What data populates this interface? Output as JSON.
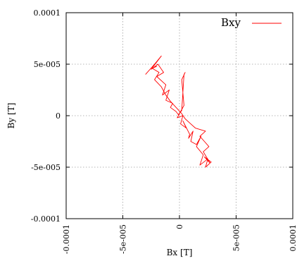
{
  "chart_data": {
    "type": "line",
    "title": "",
    "xlabel": "Bx [T]",
    "ylabel": "By [T]",
    "xlim": [
      -0.0001,
      0.0001
    ],
    "ylim": [
      -0.0001,
      0.0001
    ],
    "xticks": [
      -0.0001,
      -5e-05,
      0,
      5e-05,
      0.0001
    ],
    "yticks": [
      -0.0001,
      -5e-05,
      0,
      5e-05,
      0.0001
    ],
    "xtick_labels": [
      "-0.0001",
      "-5e-005",
      "0",
      "5e-005",
      "0.0001"
    ],
    "ytick_labels": [
      "-0.0001",
      "-5e-005",
      "0",
      "5e-005",
      "0.0001"
    ],
    "grid": true,
    "legend_position": "top-right",
    "series": [
      {
        "name": "Bxy",
        "color": "#ff0000",
        "x": [
          -3e-05,
          -2.2e-05,
          -1.6e-05,
          -2.5e-05,
          -1.9e-05,
          -1.4e-05,
          -2e-05,
          -1.2e-05,
          -1.5e-05,
          -9e-06,
          -1.2e-05,
          -6e-06,
          -8e-06,
          -3e-06,
          -1e-06,
          2e-06,
          4e-06,
          5e-06,
          2e-06,
          4e-06,
          -2e-06,
          3e-06,
          1e-06,
          6e-06,
          3e-06,
          9e-06,
          8e-06,
          1.2e-05,
          1e-05,
          1.5e-05,
          1.9e-05,
          1.5e-05,
          2.1e-05,
          1.8e-05,
          2.5e-05,
          2.3e-05,
          2.8e-05,
          2.2e-05,
          2.7e-05,
          2.1e-05,
          2.6e-05,
          2.2e-05,
          1.8e-05,
          2.3e-05,
          1.4e-05,
          1e-05,
          5e-06,
          2e-06,
          -3e-06,
          -8e-06,
          -1.2e-05,
          -1.6e-05,
          -2.2e-05,
          -1.8e-05,
          -2.4e-05,
          -2e-05
        ],
        "y": [
          4e-05,
          5e-05,
          5.8e-05,
          4.5e-05,
          5e-05,
          4.2e-05,
          3.8e-05,
          3e-05,
          2e-05,
          2.5e-05,
          1.5e-05,
          1.2e-05,
          8e-06,
          4e-06,
          1e-06,
          5e-06,
          4e-05,
          4.2e-05,
          3.5e-05,
          1e-05,
          -2e-06,
          0.0,
          -8e-06,
          -1.2e-05,
          -5e-06,
          -1.8e-05,
          -2.2e-05,
          -1.5e-05,
          -2.5e-05,
          -2.8e-05,
          -2e-05,
          -3e-05,
          -3.8e-05,
          -4.8e-05,
          -4.2e-05,
          -5e-05,
          -4.5e-05,
          -4e-05,
          -4.6e-05,
          -3.5e-05,
          -3e-05,
          -2.5e-05,
          -2e-05,
          -1.5e-05,
          -1.2e-05,
          -8e-06,
          -3e-06,
          2e-06,
          8e-06,
          1.4e-05,
          2e-05,
          2.8e-05,
          3.5e-05,
          4.2e-05,
          4.6e-05,
          4.8e-05
        ]
      }
    ]
  }
}
